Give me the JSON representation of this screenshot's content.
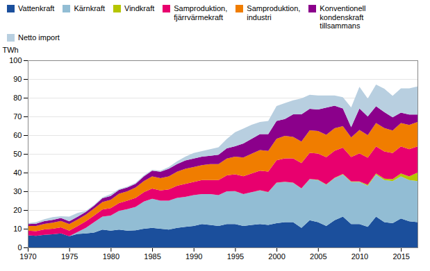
{
  "chart_data": {
    "type": "area",
    "stacked": true,
    "ylabel": "TWh",
    "x": [
      1970,
      1971,
      1972,
      1973,
      1974,
      1975,
      1976,
      1977,
      1978,
      1979,
      1980,
      1981,
      1982,
      1983,
      1984,
      1985,
      1986,
      1987,
      1988,
      1989,
      1990,
      1991,
      1992,
      1993,
      1994,
      1995,
      1996,
      1997,
      1998,
      1999,
      2000,
      2001,
      2002,
      2003,
      2004,
      2005,
      2006,
      2007,
      2008,
      2009,
      2010,
      2011,
      2012,
      2013,
      2014,
      2015,
      2016,
      2017
    ],
    "series": [
      {
        "name": "Vattenkraft",
        "color": "#1b4f9c",
        "values": [
          6.5,
          6.2,
          6.8,
          7.0,
          7.5,
          6.0,
          7.2,
          7.5,
          8.0,
          9.5,
          9.0,
          9.5,
          9.0,
          9.2,
          10.0,
          10.5,
          10.0,
          9.5,
          10.5,
          11.0,
          11.5,
          12.5,
          12.0,
          11.5,
          12.5,
          12.5,
          11.5,
          12.0,
          12.5,
          12.0,
          13.0,
          13.5,
          13.5,
          10.5,
          14.5,
          13.5,
          11.5,
          14.5,
          16.5,
          12.5,
          12.5,
          11.0,
          16.5,
          13.5,
          13.0,
          15.5,
          14.0,
          13.5
        ]
      },
      {
        "name": "Kärnkraft",
        "color": "#92bdd4",
        "values": [
          0,
          0,
          0,
          0,
          0,
          0,
          1.0,
          3.0,
          5.5,
          7.0,
          8.0,
          10.0,
          11.5,
          12.5,
          14.5,
          15.5,
          15.0,
          15.5,
          16.0,
          16.0,
          16.5,
          16.0,
          16.5,
          16.5,
          17.5,
          17.5,
          17.0,
          17.5,
          18.0,
          17.5,
          21.5,
          21.5,
          21.0,
          21.0,
          22.0,
          22.5,
          22.0,
          22.5,
          22.5,
          22.5,
          22.5,
          22.0,
          22.5,
          22.5,
          22.5,
          22.5,
          22.0,
          22.0
        ]
      },
      {
        "name": "Vindkraft",
        "color": "#b5c500",
        "values": [
          0,
          0,
          0,
          0,
          0,
          0,
          0,
          0,
          0,
          0,
          0,
          0,
          0,
          0,
          0,
          0,
          0,
          0,
          0,
          0,
          0,
          0,
          0,
          0,
          0,
          0.05,
          0.05,
          0.05,
          0.05,
          0.1,
          0.1,
          0.1,
          0.1,
          0.1,
          0.1,
          0.2,
          0.2,
          0.2,
          0.3,
          0.3,
          0.3,
          0.5,
          0.5,
          0.8,
          1.0,
          1.5,
          2.0,
          4.5
        ]
      },
      {
        "name": "Samproduktion,\nfjärrvärme​kraft",
        "color": "#e8006e",
        "values": [
          2.5,
          2.5,
          2.8,
          3.0,
          3.2,
          3.0,
          3.2,
          3.5,
          3.5,
          3.8,
          4.0,
          4.2,
          4.5,
          4.8,
          5.0,
          5.5,
          5.5,
          6.0,
          6.5,
          7.0,
          7.0,
          7.5,
          7.5,
          8.0,
          8.5,
          9.0,
          9.5,
          10.0,
          10.5,
          11.0,
          12.0,
          12.5,
          13.0,
          13.5,
          14.0,
          14.0,
          14.5,
          14.5,
          14.0,
          13.0,
          15.0,
          14.5,
          14.5,
          14.5,
          14.0,
          14.5,
          14.5,
          14.0
        ]
      },
      {
        "name": "Samproduktion,\nindustri",
        "color": "#f07d00",
        "values": [
          2.5,
          2.8,
          3.0,
          3.2,
          3.5,
          3.5,
          3.5,
          3.5,
          3.8,
          4.0,
          4.5,
          5.0,
          5.0,
          5.5,
          6.0,
          6.5,
          6.5,
          7.0,
          7.5,
          8.0,
          8.0,
          8.0,
          8.5,
          8.5,
          9.0,
          9.5,
          10.0,
          10.5,
          11.0,
          11.0,
          11.5,
          12.0,
          11.5,
          11.5,
          12.0,
          12.0,
          12.0,
          12.0,
          11.5,
          10.5,
          12.5,
          12.0,
          12.5,
          12.5,
          12.0,
          12.5,
          13.0,
          13.0
        ]
      },
      {
        "name": "Konventionell\nkondenskraft\ntillsammans",
        "color": "#8b008b",
        "values": [
          1.0,
          1.2,
          1.5,
          1.5,
          1.5,
          1.5,
          1.5,
          1.5,
          1.5,
          2.0,
          2.0,
          2.0,
          2.0,
          2.0,
          2.5,
          3.0,
          3.5,
          4.0,
          4.0,
          4.5,
          4.5,
          4.5,
          4.5,
          5.0,
          5.5,
          5.5,
          7.5,
          8.0,
          8.5,
          9.0,
          9.5,
          9.0,
          12.0,
          14.5,
          11.5,
          11.5,
          14.5,
          12.0,
          9.5,
          5.5,
          11.5,
          10.0,
          9.0,
          8.5,
          7.0,
          5.5,
          5.5,
          4.0
        ]
      },
      {
        "name": "Netto import",
        "color": "#b8cfe0",
        "values": [
          0.5,
          0.8,
          1.0,
          1.5,
          1.0,
          2.5,
          2.0,
          0.5,
          0.5,
          0.5,
          1.0,
          0.5,
          0.5,
          0.5,
          0.5,
          0.5,
          0.5,
          1.0,
          1.5,
          2.0,
          3.0,
          3.0,
          3.5,
          4.0,
          5.0,
          7.5,
          8.0,
          7.5,
          6.5,
          7.0,
          8.0,
          8.5,
          7.5,
          8.5,
          7.5,
          7.5,
          6.5,
          5.5,
          6.0,
          10.5,
          11.5,
          9.5,
          11.5,
          12.5,
          11.5,
          13.0,
          14.0,
          15.0
        ]
      }
    ],
    "xlim": [
      1970,
      2017
    ],
    "xticks": [
      1970,
      1975,
      1980,
      1985,
      1990,
      1995,
      2000,
      2005,
      2010,
      2015
    ],
    "ylim": [
      0,
      100
    ],
    "yticks": [
      0,
      10,
      20,
      30,
      40,
      50,
      60,
      70,
      80,
      90,
      100
    ],
    "grid": true,
    "legend": "top"
  }
}
